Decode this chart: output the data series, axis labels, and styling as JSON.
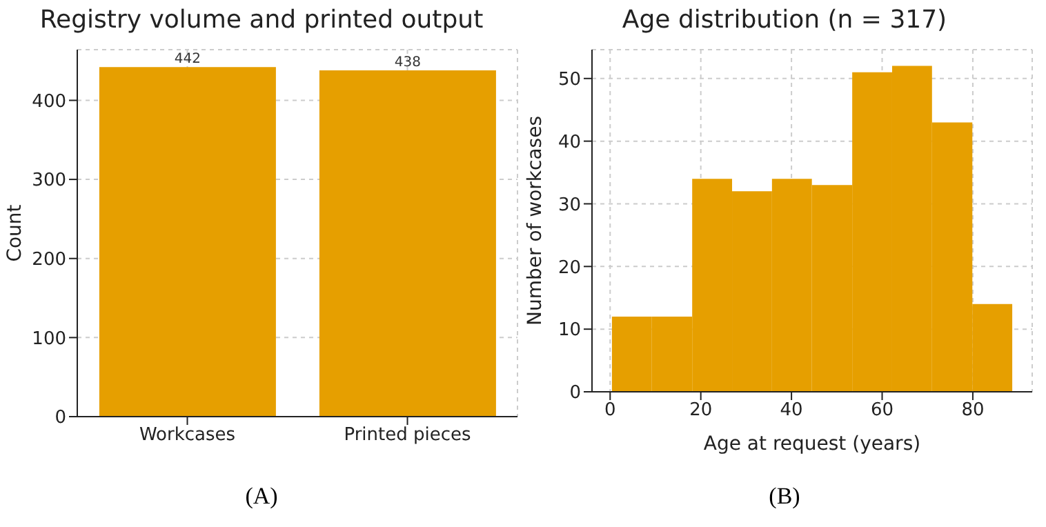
{
  "chart_data": [
    {
      "type": "bar",
      "title": "Registry volume and printed output",
      "ylabel": "Count",
      "categories": [
        "Workcases",
        "Printed pieces"
      ],
      "values": [
        442,
        438
      ],
      "color": "#e69f00",
      "data_labels": true,
      "ylim": [
        0,
        464.1
      ],
      "yticks": [
        0,
        100,
        200,
        300,
        400
      ],
      "grid": true,
      "annotations": [
        "(A)"
      ]
    },
    {
      "type": "histogram",
      "title": "Age distribution (n = 317)",
      "xlabel": "Age at request (years)",
      "ylabel": "Number of workcases",
      "bins": [
        0.4,
        9.2,
        18.1,
        26.9,
        35.7,
        44.5,
        53.4,
        62.2,
        71.0,
        79.9,
        88.7
      ],
      "values": [
        12,
        12,
        34,
        32,
        34,
        33,
        51,
        52,
        43,
        14
      ],
      "color": "#e69f00",
      "xlim": [
        -4.0,
        93.1
      ],
      "xticks": [
        0,
        20,
        40,
        60,
        80
      ],
      "ylim": [
        0,
        54.6
      ],
      "yticks": [
        0,
        10,
        20,
        30,
        40,
        50
      ],
      "grid": true,
      "annotations": [
        "(B)"
      ]
    }
  ]
}
